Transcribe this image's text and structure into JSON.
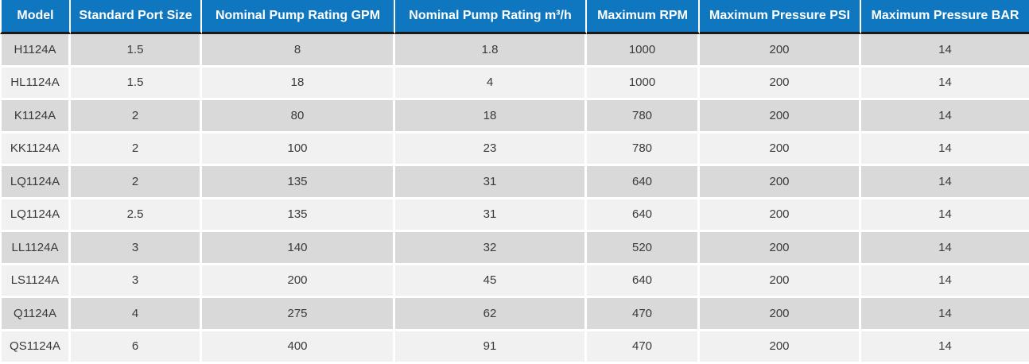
{
  "colors": {
    "header_bg": "#0f77c0",
    "header_text": "#ffffff",
    "row_dark": "#d9d9d9",
    "row_light": "#f1f1f1",
    "header_underline": "#1a1a1a",
    "body_text": "#3a3a3a"
  },
  "table": {
    "columns": [
      "Model",
      "Standard Port Size",
      "Nominal Pump Rating GPM",
      "Nominal Pump Rating m³/h",
      "Maximum RPM",
      "Maximum Pressure PSI",
      "Maximum Pressure BAR"
    ],
    "rows": [
      [
        "H1124A",
        "1.5",
        "8",
        "1.8",
        "1000",
        "200",
        "14"
      ],
      [
        "HL1124A",
        "1.5",
        "18",
        "4",
        "1000",
        "200",
        "14"
      ],
      [
        "K1124A",
        "2",
        "80",
        "18",
        "780",
        "200",
        "14"
      ],
      [
        "KK1124A",
        "2",
        "100",
        "23",
        "780",
        "200",
        "14"
      ],
      [
        "LQ1124A",
        "2",
        "135",
        "31",
        "640",
        "200",
        "14"
      ],
      [
        "LQ1124A",
        "2.5",
        "135",
        "31",
        "640",
        "200",
        "14"
      ],
      [
        "LL1124A",
        "3",
        "140",
        "32",
        "520",
        "200",
        "14"
      ],
      [
        "LS1124A",
        "3",
        "200",
        "45",
        "640",
        "200",
        "14"
      ],
      [
        "Q1124A",
        "4",
        "275",
        "62",
        "470",
        "200",
        "14"
      ],
      [
        "QS1124A",
        "6",
        "400",
        "91",
        "470",
        "200",
        "14"
      ]
    ]
  },
  "chart_data": {
    "type": "table",
    "columns": [
      "Model",
      "Standard Port Size",
      "Nominal Pump Rating GPM",
      "Nominal Pump Rating m³/h",
      "Maximum RPM",
      "Maximum Pressure PSI",
      "Maximum Pressure BAR"
    ],
    "rows": [
      [
        "H1124A",
        1.5,
        8,
        1.8,
        1000,
        200,
        14
      ],
      [
        "HL1124A",
        1.5,
        18,
        4,
        1000,
        200,
        14
      ],
      [
        "K1124A",
        2,
        80,
        18,
        780,
        200,
        14
      ],
      [
        "KK1124A",
        2,
        100,
        23,
        780,
        200,
        14
      ],
      [
        "LQ1124A",
        2,
        135,
        31,
        640,
        200,
        14
      ],
      [
        "LQ1124A",
        2.5,
        135,
        31,
        640,
        200,
        14
      ],
      [
        "LL1124A",
        3,
        140,
        32,
        520,
        200,
        14
      ],
      [
        "LS1124A",
        3,
        200,
        45,
        640,
        200,
        14
      ],
      [
        "Q1124A",
        4,
        275,
        62,
        470,
        200,
        14
      ],
      [
        "QS1124A",
        6,
        400,
        91,
        470,
        200,
        14
      ]
    ],
    "layout_hints": {
      "header_row": true,
      "zebra_striping": true,
      "all_cells_centered": true
    }
  }
}
